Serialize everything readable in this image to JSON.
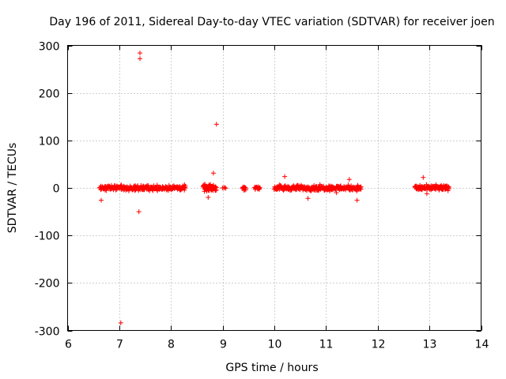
{
  "chart_data": {
    "type": "scatter",
    "title": "Day 196 of 2011, Sidereal Day-to-day VTEC variation (SDTVAR) for receiver joen",
    "xlabel": "GPS time / hours",
    "ylabel": "SDTVAR / TECUs",
    "xlim": [
      6,
      14
    ],
    "ylim": [
      -300,
      300
    ],
    "x_ticks": [
      6,
      7,
      8,
      9,
      10,
      11,
      12,
      13,
      14
    ],
    "y_ticks": [
      -300,
      -200,
      -100,
      0,
      100,
      200,
      300
    ],
    "x_tick_labels": [
      "6",
      "7",
      "8",
      "9",
      "10",
      "11",
      "12",
      "13",
      "14"
    ],
    "y_tick_labels": [
      "-300",
      "-200",
      "-100",
      "0",
      "100",
      "200",
      "300"
    ],
    "grid": true,
    "marker": "+",
    "color": "#ff0000",
    "clusters": [
      {
        "x_start": 6.62,
        "x_end": 8.28,
        "count": 260,
        "spread": 8
      },
      {
        "x_start": 8.62,
        "x_end": 8.88,
        "count": 50,
        "spread": 10
      },
      {
        "x_start": 9.0,
        "x_end": 9.06,
        "count": 4,
        "spread": 3
      },
      {
        "x_start": 9.38,
        "x_end": 9.45,
        "count": 12,
        "spread": 6
      },
      {
        "x_start": 9.62,
        "x_end": 9.72,
        "count": 16,
        "spread": 6
      },
      {
        "x_start": 10.0,
        "x_end": 11.68,
        "count": 300,
        "spread": 8
      },
      {
        "x_start": 12.72,
        "x_end": 13.38,
        "count": 130,
        "spread": 8
      }
    ],
    "outliers": [
      {
        "x": 7.4,
        "y": 284
      },
      {
        "x": 7.4,
        "y": 272
      },
      {
        "x": 7.03,
        "y": -284
      },
      {
        "x": 7.38,
        "y": -50
      },
      {
        "x": 6.65,
        "y": -26
      },
      {
        "x": 8.88,
        "y": 134
      },
      {
        "x": 8.82,
        "y": 31
      },
      {
        "x": 8.72,
        "y": -20
      },
      {
        "x": 10.2,
        "y": 24
      },
      {
        "x": 10.65,
        "y": -22
      },
      {
        "x": 11.45,
        "y": 18
      },
      {
        "x": 11.6,
        "y": -26
      },
      {
        "x": 11.2,
        "y": -10
      },
      {
        "x": 12.88,
        "y": 22
      },
      {
        "x": 12.95,
        "y": -12
      }
    ]
  }
}
